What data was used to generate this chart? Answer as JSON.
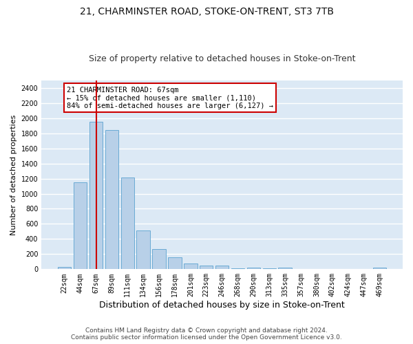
{
  "title1": "21, CHARMINSTER ROAD, STOKE-ON-TRENT, ST3 7TB",
  "title2": "Size of property relative to detached houses in Stoke-on-Trent",
  "xlabel": "Distribution of detached houses by size in Stoke-on-Trent",
  "ylabel": "Number of detached properties",
  "categories": [
    "22sqm",
    "44sqm",
    "67sqm",
    "89sqm",
    "111sqm",
    "134sqm",
    "156sqm",
    "178sqm",
    "201sqm",
    "223sqm",
    "246sqm",
    "268sqm",
    "290sqm",
    "313sqm",
    "335sqm",
    "357sqm",
    "380sqm",
    "402sqm",
    "424sqm",
    "447sqm",
    "469sqm"
  ],
  "values": [
    30,
    1150,
    1950,
    1840,
    1210,
    515,
    265,
    155,
    80,
    50,
    45,
    15,
    25,
    10,
    18,
    0,
    0,
    0,
    0,
    0,
    20
  ],
  "bar_color": "#b8d0e8",
  "bar_edge_color": "#6aaad4",
  "highlight_bar_index": 2,
  "highlight_line_color": "#cc0000",
  "annotation_text": "21 CHARMINSTER ROAD: 67sqm\n← 15% of detached houses are smaller (1,110)\n84% of semi-detached houses are larger (6,127) →",
  "annotation_box_color": "#cc0000",
  "ylim": [
    0,
    2500
  ],
  "yticks": [
    0,
    200,
    400,
    600,
    800,
    1000,
    1200,
    1400,
    1600,
    1800,
    2000,
    2200,
    2400
  ],
  "footer1": "Contains HM Land Registry data © Crown copyright and database right 2024.",
  "footer2": "Contains public sector information licensed under the Open Government Licence v3.0.",
  "figure_bg_color": "#ffffff",
  "plot_bg_color": "#dce9f5",
  "grid_color": "#ffffff",
  "title1_fontsize": 10,
  "title2_fontsize": 9,
  "xlabel_fontsize": 9,
  "ylabel_fontsize": 8,
  "tick_fontsize": 7,
  "footer_fontsize": 6.5,
  "annotation_fontsize": 7.5
}
